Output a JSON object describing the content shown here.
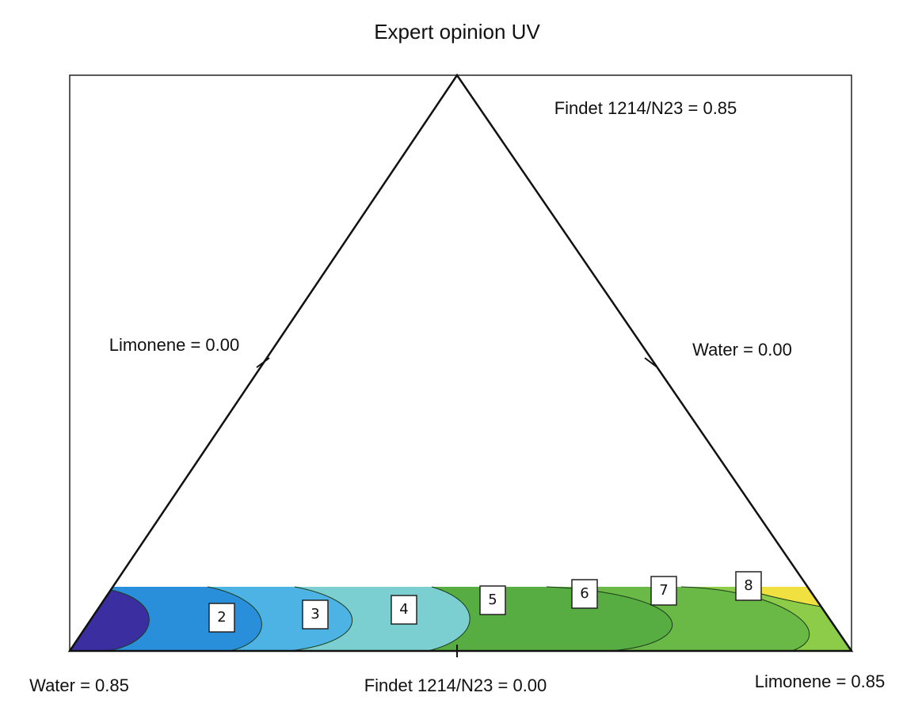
{
  "chart_data": {
    "type": "ternary-contour",
    "title": "Expert opinion UV",
    "apex_label": "Findet 1214/N23 = 0.85",
    "left_edge_label": "Limonene = 0.00",
    "right_edge_label": "Water = 0.00",
    "bottom_left_label": "Water = 0.85",
    "bottom_middle_label": "Findet 1214/N23 = 0.00",
    "bottom_right_label": "Limonene = 0.85",
    "contour_labels": [
      2,
      3,
      4,
      5,
      6,
      7,
      8
    ]
  }
}
